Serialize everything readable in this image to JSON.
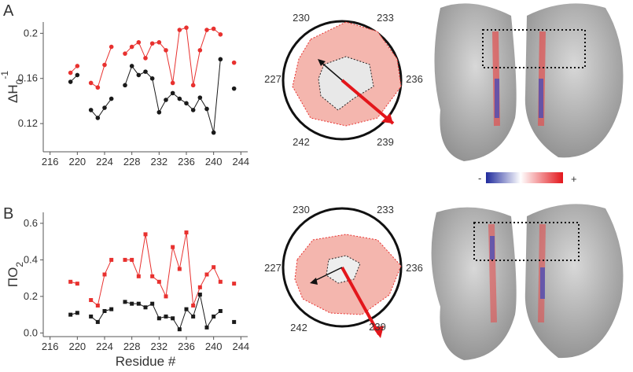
{
  "panel_labels": [
    "A",
    "B"
  ],
  "chart_data": [
    {
      "type": "line",
      "marker": "circle",
      "ylabel": "ΔH",
      "ylabel_sub": "0",
      "ylabel_sup": "-1",
      "x": [
        219,
        220,
        221,
        222,
        223,
        224,
        225,
        226,
        227,
        228,
        229,
        230,
        231,
        232,
        233,
        234,
        235,
        236,
        237,
        238,
        239,
        240,
        241,
        242,
        243
      ],
      "xlim": [
        215,
        245
      ],
      "xticks": [
        216,
        220,
        224,
        228,
        232,
        236,
        240,
        244
      ],
      "ylim": [
        0.095,
        0.21
      ],
      "yticks": [
        0.12,
        0.16,
        0.2
      ],
      "series": [
        {
          "color": "#e8312f",
          "values": [
            0.165,
            0.171,
            null,
            0.156,
            0.152,
            0.172,
            0.188,
            null,
            0.182,
            0.188,
            0.192,
            0.178,
            0.191,
            0.192,
            0.185,
            0.156,
            0.203,
            0.205,
            0.154,
            0.185,
            0.203,
            0.204,
            0.199,
            null,
            0.174
          ]
        },
        {
          "color": "#1a1a1a",
          "values": [
            0.157,
            0.163,
            null,
            0.132,
            0.125,
            0.134,
            0.142,
            null,
            0.154,
            0.171,
            0.163,
            0.166,
            0.16,
            0.13,
            0.141,
            0.147,
            0.142,
            0.138,
            0.132,
            0.143,
            0.133,
            0.112,
            0.177,
            null,
            0.151
          ]
        }
      ]
    },
    {
      "type": "line",
      "marker": "square",
      "ylabel": "ΠO",
      "ylabel_sub": "2",
      "xlabel": "Residue #",
      "x": [
        219,
        220,
        221,
        222,
        223,
        224,
        225,
        226,
        227,
        228,
        229,
        230,
        231,
        232,
        233,
        234,
        235,
        236,
        237,
        238,
        239,
        240,
        241,
        242,
        243
      ],
      "xlim": [
        215,
        245
      ],
      "xticks": [
        216,
        220,
        224,
        228,
        232,
        236,
        240,
        244
      ],
      "ylim": [
        -0.02,
        0.66
      ],
      "yticks": [
        {
          "value": 0,
          "label": "0.0"
        },
        0.2,
        0.4,
        0.6
      ],
      "series": [
        {
          "color": "#e8312f",
          "values": [
            0.28,
            0.27,
            null,
            0.18,
            0.15,
            0.32,
            0.4,
            null,
            0.4,
            0.4,
            0.31,
            0.54,
            0.31,
            0.28,
            0.2,
            0.47,
            0.35,
            0.55,
            0.15,
            0.25,
            0.32,
            0.36,
            0.28,
            null,
            0.27
          ]
        },
        {
          "color": "#1a1a1a",
          "values": [
            0.1,
            0.11,
            null,
            0.09,
            0.06,
            0.12,
            0.13,
            null,
            0.17,
            0.16,
            0.16,
            0.14,
            0.16,
            0.08,
            0.09,
            0.08,
            0.02,
            0.13,
            0.09,
            0.21,
            0.03,
            0.09,
            0.12,
            null,
            0.06
          ]
        }
      ]
    }
  ],
  "wheels": [
    {
      "labels": [
        "230",
        "233",
        "236",
        "239",
        "242",
        "227"
      ]
    },
    {
      "labels": [
        "230",
        "233",
        "236",
        "239",
        "242",
        "227"
      ]
    }
  ],
  "colorbar": {
    "min_label": "-",
    "max_label": "+"
  }
}
